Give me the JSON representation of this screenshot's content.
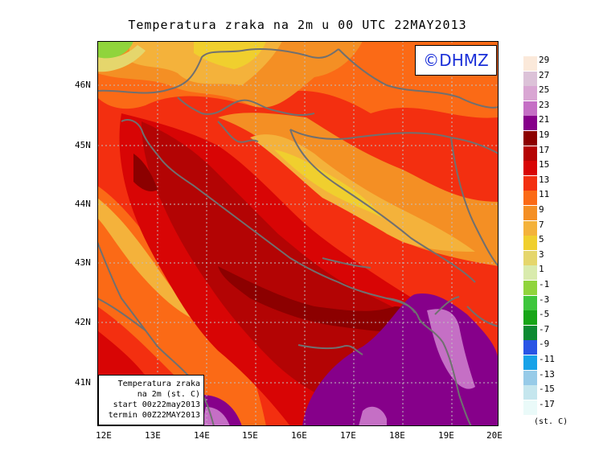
{
  "title": "Temperatura zraka na 2m u 00 UTC 22MAY2013",
  "logo": "©DHMZ",
  "info_box": {
    "line1": "Temperatura zraka",
    "line2": "na 2m (st. C)",
    "line3": "start 00z22may2013",
    "line4": "termin 00Z22MAY2013"
  },
  "x_ticks": [
    "12E",
    "13E",
    "14E",
    "15E",
    "16E",
    "17E",
    "18E",
    "19E",
    "20E"
  ],
  "y_ticks": [
    "46N",
    "45N",
    "44N",
    "43N",
    "42N",
    "41N"
  ],
  "legend": {
    "units": "(st. C)",
    "labels": [
      "29",
      "27",
      "25",
      "23",
      "21",
      "19",
      "17",
      "15",
      "13",
      "11",
      "9",
      "7",
      "5",
      "3",
      "1",
      "-1",
      "-3",
      "-5",
      "-7",
      "-9",
      "-11",
      "-13",
      "-15",
      "-17"
    ],
    "colors": [
      "#fbe9da",
      "#dcc2d8",
      "#d9a6d3",
      "#c56fc5",
      "#86008a",
      "#8c0000",
      "#b50303",
      "#d80505",
      "#f32f10",
      "#fb6a16",
      "#f48f24",
      "#f4b23b",
      "#f0cf2e",
      "#e5d66c",
      "#d9ebad",
      "#90d43c",
      "#3ec63c",
      "#17a517",
      "#0c8a32",
      "#2955e5",
      "#17a2e8",
      "#97cbe8",
      "#c5e6ee",
      "#eafaf9"
    ]
  },
  "map_colors": {
    "sea": "#b30404",
    "coast": "#d80505",
    "land_warm": "#f32f10",
    "land_mid": "#fb6a16",
    "land_cool": "#f48f24",
    "land_cold": "#f4b23b",
    "land_coldest": "#f0cf2e",
    "alpine": "#e5d66c",
    "alpine_green": "#90d43c",
    "sea_purple": "#86008a",
    "sea_violet": "#c56fc5",
    "border": "#707070",
    "grid": "#bfbfbf"
  }
}
